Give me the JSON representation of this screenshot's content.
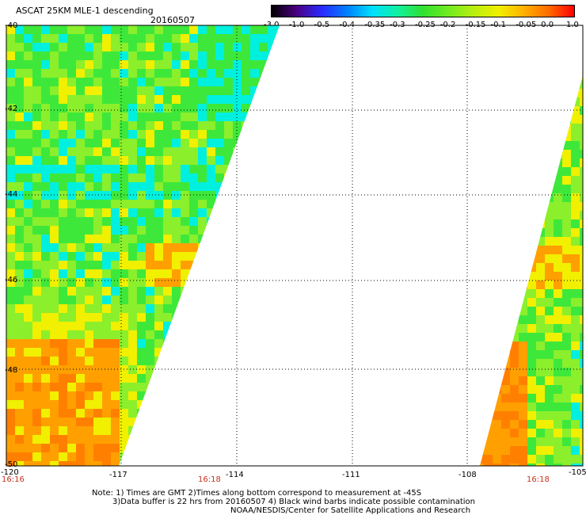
{
  "header": {
    "title": "ASCAT 25KM MLE-1 descending",
    "date": "20160507"
  },
  "legend": {
    "labels": [
      "-3.0",
      "-1.0",
      "-0.5",
      "-0.4",
      "-0.35",
      "-0.3",
      "-0.25",
      "-0.2",
      "-0.15",
      "-0.1",
      "-0.05",
      "0.0",
      "1.0"
    ],
    "gradient_colors": [
      "#000000",
      "#4b0082",
      "#2a2aff",
      "#0080ff",
      "#00e0ff",
      "#10f0a0",
      "#30e030",
      "#70ec20",
      "#b8ee10",
      "#f0f000",
      "#ffb000",
      "#ff6a00",
      "#ff0000"
    ]
  },
  "map": {
    "lat_labels": [
      "-40",
      "-42",
      "-44",
      "-46",
      "-48",
      "-50"
    ],
    "lon_labels": [
      "-120",
      "-117",
      "-114",
      "-111",
      "-108",
      "-105"
    ],
    "time_labels": [
      "16:16",
      "16:18",
      "16:18"
    ],
    "swath_colors": {
      "green": "#3ee83a",
      "light_green": "#8bef2c",
      "yellow": "#f0f000",
      "cyan": "#00f0e0",
      "orange": "#ffa000",
      "deep_orange": "#ff8000",
      "blue": "#0050ff"
    }
  },
  "notes": {
    "line1": "Note: 1) Times are GMT 2)Times along bottom correspond to measurement at -45S",
    "line2": "3)Data buffer is 22 hrs from 20160507 4) Black wind barbs indicate possible contamination",
    "line3": "NOAA/NESDIS/Center for Satellite Applications and Research"
  }
}
